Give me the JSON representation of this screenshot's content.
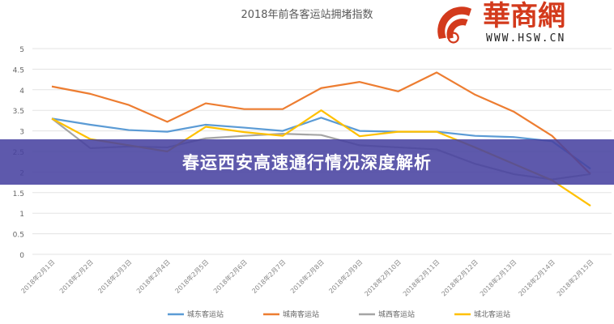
{
  "chart_data": {
    "type": "line",
    "title": "2018年前各客运站拥堵指数",
    "xlabel": "",
    "ylabel": "",
    "ylim": [
      0,
      5
    ],
    "yticks": [
      "0",
      "0.5",
      "1",
      "1.5",
      "2",
      "2.5",
      "3",
      "3.5",
      "4",
      "4.5",
      "5"
    ],
    "grid": true,
    "legend_position": "bottom",
    "categories": [
      "2018年2月1日",
      "2018年2月2日",
      "2018年2月3日",
      "2018年2月4日",
      "2018年2月5日",
      "2018年2月6日",
      "2018年2月7日",
      "2018年2月8日",
      "2018年2月9日",
      "2018年2月10日",
      "2018年2月11日",
      "2018年2月12日",
      "2018年2月13日",
      "2018年2月14日",
      "2018年2月15日"
    ],
    "series": [
      {
        "name": "城东客运站",
        "color": "#5b9bd5",
        "values": [
          3.3,
          3.15,
          3.02,
          2.98,
          3.15,
          3.08,
          3.0,
          3.32,
          3.0,
          2.98,
          2.98,
          2.88,
          2.85,
          2.75,
          2.08
        ]
      },
      {
        "name": "城南客运站",
        "color": "#ed7d31",
        "values": [
          4.08,
          3.9,
          3.63,
          3.22,
          3.67,
          3.53,
          3.53,
          4.04,
          4.19,
          3.96,
          4.42,
          3.88,
          3.47,
          2.88,
          1.95
        ]
      },
      {
        "name": "城西客运站",
        "color": "#a5a5a5",
        "values": [
          3.3,
          2.58,
          2.62,
          2.6,
          2.82,
          2.88,
          2.93,
          2.9,
          2.65,
          2.6,
          2.55,
          2.2,
          1.95,
          1.82,
          1.95
        ]
      },
      {
        "name": "城北客运站",
        "color": "#ffc000",
        "values": [
          3.3,
          2.8,
          2.65,
          2.5,
          3.1,
          2.97,
          2.88,
          3.5,
          2.87,
          2.98,
          2.98,
          2.6,
          2.2,
          1.8,
          1.18
        ]
      }
    ]
  },
  "banner": {
    "text": "春运西安高速通行情况深度解析",
    "color": "#4842a0"
  },
  "watermark": {
    "name": "華商網",
    "url": "WWW.HSW.CN",
    "color": "#d33a1c"
  }
}
